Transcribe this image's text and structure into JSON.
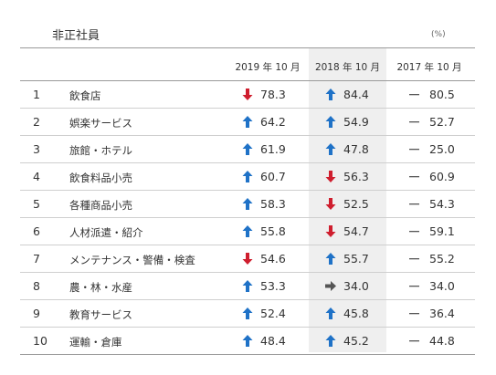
{
  "title": "非正社員",
  "unit": "(%)",
  "colors": {
    "up": "#1f72c7",
    "down": "#cf1e2e",
    "flat": "#555555",
    "highlight": "#efefef"
  },
  "chart_data": {
    "type": "table",
    "columns": [
      "2019 年 10 月",
      "2018 年 10 月",
      "2017 年 10 月"
    ],
    "rows": [
      {
        "rank": "1",
        "name": "飲食店",
        "values": [
          "78.3",
          "84.4",
          "80.5"
        ],
        "trend": [
          "down",
          "up",
          "flat"
        ]
      },
      {
        "rank": "2",
        "name": "娯楽サービス",
        "values": [
          "64.2",
          "54.9",
          "52.7"
        ],
        "trend": [
          "up",
          "up",
          "flat"
        ]
      },
      {
        "rank": "3",
        "name": "旅館・ホテル",
        "values": [
          "61.9",
          "47.8",
          "25.0"
        ],
        "trend": [
          "up",
          "up",
          "flat"
        ]
      },
      {
        "rank": "4",
        "name": "飲食料品小売",
        "values": [
          "60.7",
          "56.3",
          "60.9"
        ],
        "trend": [
          "up",
          "down",
          "flat"
        ]
      },
      {
        "rank": "5",
        "name": "各種商品小売",
        "values": [
          "58.3",
          "52.5",
          "54.3"
        ],
        "trend": [
          "up",
          "down",
          "flat"
        ]
      },
      {
        "rank": "6",
        "name": "人材派遣・紹介",
        "values": [
          "55.8",
          "54.7",
          "59.1"
        ],
        "trend": [
          "up",
          "down",
          "flat"
        ]
      },
      {
        "rank": "7",
        "name": "メンテナンス・警備・検査",
        "values": [
          "54.6",
          "55.7",
          "55.2"
        ],
        "trend": [
          "down",
          "up",
          "flat"
        ]
      },
      {
        "rank": "8",
        "name": "農・林・水産",
        "values": [
          "53.3",
          "34.0",
          "34.0"
        ],
        "trend": [
          "up",
          "same",
          "flat"
        ]
      },
      {
        "rank": "9",
        "name": "教育サービス",
        "values": [
          "52.4",
          "45.8",
          "36.4"
        ],
        "trend": [
          "up",
          "up",
          "flat"
        ]
      },
      {
        "rank": "10",
        "name": "運輸・倉庫",
        "values": [
          "48.4",
          "45.2",
          "44.8"
        ],
        "trend": [
          "up",
          "up",
          "flat"
        ]
      }
    ]
  }
}
